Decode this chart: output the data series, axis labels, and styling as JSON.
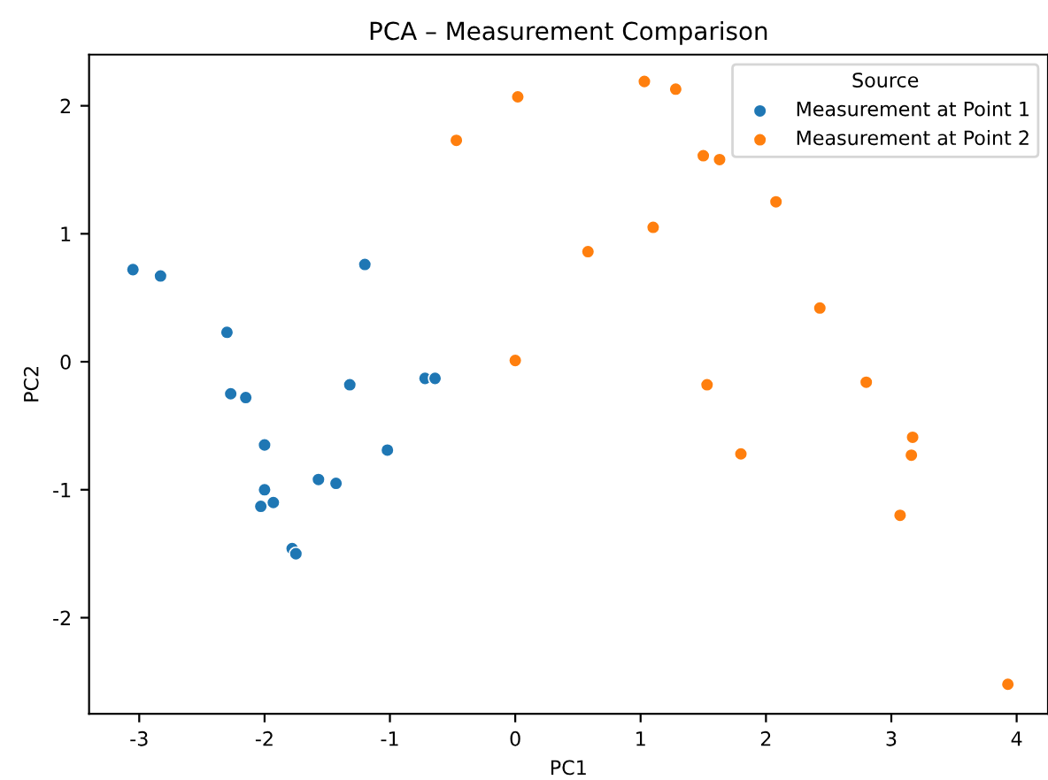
{
  "chart_data": {
    "type": "scatter",
    "title": "PCA – Measurement Comparison",
    "xlabel": "PC1",
    "ylabel": "PC2",
    "legend_title": "Source",
    "legend": "top right",
    "grid": false,
    "marker": "circle",
    "xlim": [
      -3.4,
      4.25
    ],
    "ylim": [
      -2.75,
      2.4
    ],
    "xticks": [
      -3,
      -2,
      -1,
      0,
      1,
      2,
      3,
      4
    ],
    "yticks": [
      -2,
      -1,
      0,
      1,
      2
    ],
    "series": [
      {
        "name": "Measurement at Point 1",
        "color": "#1f77b4",
        "x": [
          -3.05,
          -2.83,
          -2.3,
          -2.27,
          -2.15,
          -2.0,
          -2.0,
          -2.03,
          -1.93,
          -1.57,
          -1.43,
          -1.2,
          -1.32,
          -0.72,
          -0.64,
          -1.02,
          -1.78,
          -1.75
        ],
        "values": [
          0.72,
          0.67,
          0.23,
          -0.25,
          -0.28,
          -0.65,
          -1.0,
          -1.13,
          -1.1,
          -0.92,
          -0.95,
          0.76,
          -0.18,
          -0.13,
          -0.13,
          -0.69,
          -1.46,
          -1.5
        ]
      },
      {
        "name": "Measurement at Point 2",
        "color": "#ff7f0e",
        "x": [
          -0.47,
          0.02,
          1.03,
          1.28,
          1.5,
          1.63,
          2.08,
          1.1,
          0.58,
          0.0,
          2.43,
          1.53,
          2.8,
          1.8,
          3.17,
          3.16,
          3.07,
          3.93
        ],
        "values": [
          1.73,
          2.07,
          2.19,
          2.13,
          1.61,
          1.58,
          1.25,
          1.05,
          0.86,
          0.01,
          0.42,
          -0.18,
          -0.16,
          -0.72,
          -0.59,
          -0.73,
          -1.2,
          -2.52
        ]
      }
    ]
  }
}
